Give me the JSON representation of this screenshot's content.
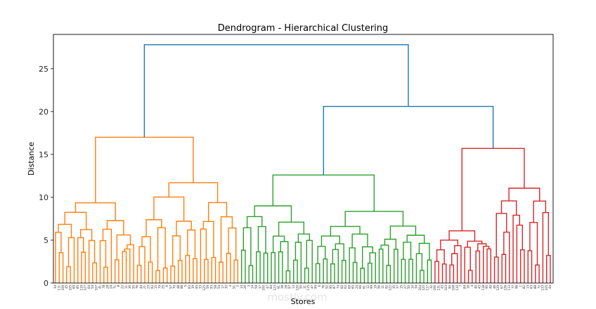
{
  "chart_data": {
    "type": "dendrogram",
    "title": "Dendrogram - Hierarchical Clustering",
    "xlabel": "Stores",
    "ylabel": "Distance",
    "ylim": [
      0,
      29
    ],
    "yticks": [
      0,
      5,
      10,
      15,
      20,
      25
    ],
    "grid": false,
    "legend": "none",
    "root_merge_distance": 27.8,
    "major_merges": [
      {
        "distance": 27.8,
        "joins": [
          "orange cluster",
          "green+red clusters"
        ]
      },
      {
        "distance": 20.6,
        "joins": [
          "green cluster",
          "red cluster"
        ]
      },
      {
        "distance": 17.0,
        "joins": [
          "orange left",
          "orange right"
        ]
      },
      {
        "distance": 15.7,
        "joins": [
          "red left",
          "red right"
        ]
      },
      {
        "distance": 12.6,
        "joins": [
          "green left",
          "green right"
        ]
      }
    ],
    "clusters": [
      {
        "color": "#ff7f0e",
        "leaves": 50
      },
      {
        "color": "#2ca02c",
        "leaves": 52
      },
      {
        "color": "#d62728",
        "leaves": 32
      }
    ],
    "link_color_above_threshold": "#1f77b4",
    "leaf_labels": [
      "34",
      "111",
      "109",
      "45",
      "105",
      "69",
      "85",
      "119",
      "127",
      "64",
      "54",
      "107",
      "41",
      "78",
      "28",
      "24",
      "71",
      "8",
      "22",
      "11",
      "36",
      "55",
      "76",
      "44",
      "21",
      "23",
      "93",
      "15",
      "79",
      "25",
      "6",
      "57",
      "70",
      "48",
      "88",
      "5",
      "63",
      "39",
      "95",
      "33",
      "125",
      "59",
      "93",
      "58",
      "54",
      "17",
      "30",
      "4",
      "51",
      "2",
      "14",
      "26",
      "3",
      "14",
      "59",
      "37",
      "100",
      "47",
      "84",
      "123",
      "91",
      "38",
      "28",
      "97",
      "13",
      "120",
      "50",
      "31",
      "115",
      "47",
      "94",
      "6",
      "76",
      "52",
      "95",
      "87",
      "74",
      "60",
      "62",
      "69",
      "65",
      "24",
      "66",
      "61",
      "12",
      "99",
      "19",
      "56",
      "11",
      "92",
      "122",
      "35",
      "37",
      "15",
      "27",
      "50",
      "10",
      "34",
      "104",
      "125",
      "117",
      "32",
      "106",
      "131",
      "43",
      "103",
      "90",
      "108",
      "110",
      "7",
      "84",
      "16",
      "4",
      "40",
      "43",
      "118",
      "95",
      "49",
      "46",
      "129",
      "67",
      "126",
      "113",
      "77",
      "96",
      "1",
      "82",
      "13",
      "63",
      "88",
      "72",
      "133",
      "105",
      "44"
    ],
    "watermark": "mostly.com"
  }
}
